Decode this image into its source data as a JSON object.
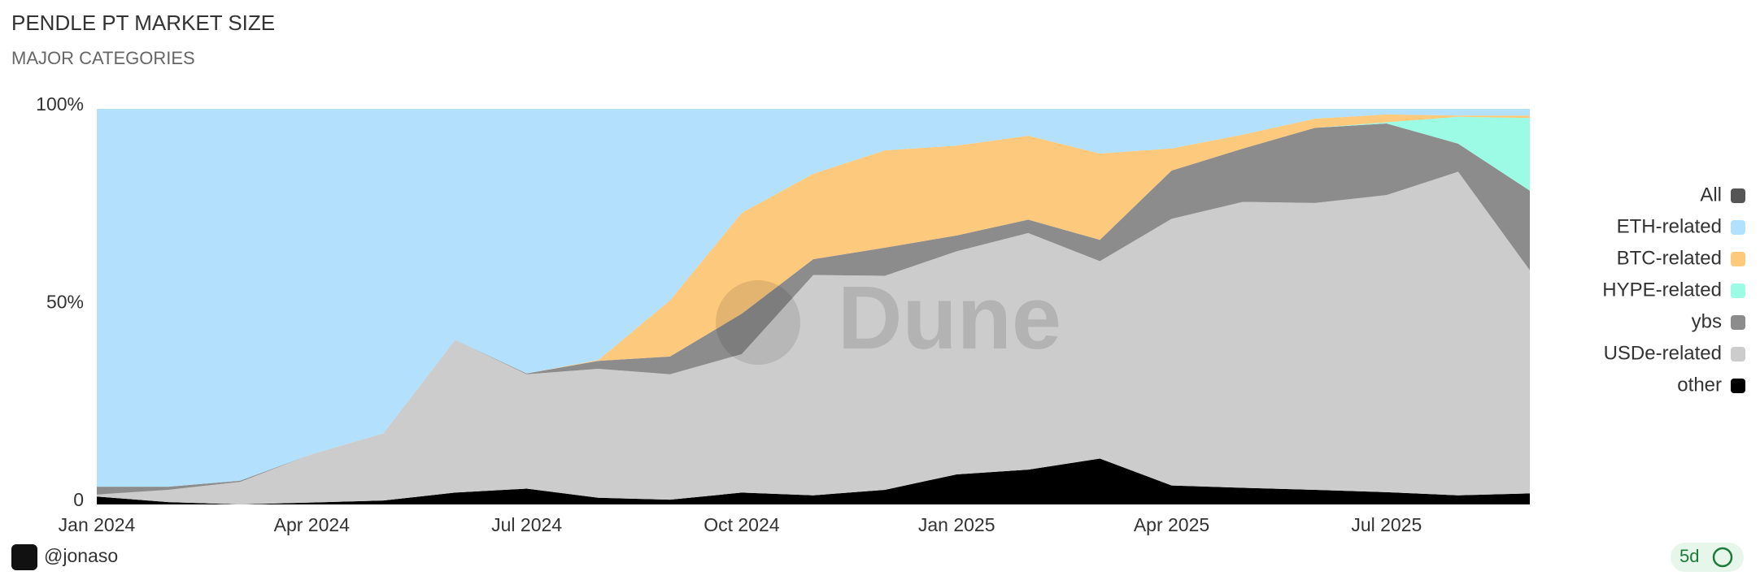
{
  "chart_data": {
    "type": "stacked_area_percent",
    "title": "PENDLE PT MARKET SIZE",
    "subtitle": "MAJOR CATEGORIES",
    "watermark": "Dune",
    "categories": [
      "Jan 2024",
      null,
      null,
      "Apr 2024",
      null,
      null,
      "Jul 2024",
      null,
      null,
      "Oct 2024",
      null,
      null,
      "Jan 2025",
      null,
      null,
      "Apr 2025",
      null,
      null,
      "Jul 2025",
      null,
      null
    ],
    "ylim": [
      0,
      100
    ],
    "yticks": [
      0,
      {
        "value": 50,
        "label": "50%"
      },
      {
        "value": 100,
        "label": "100%"
      }
    ],
    "legend": "right",
    "series": [
      {
        "name": "All",
        "color": "#555555",
        "values": [
          0,
          0,
          0,
          0,
          0,
          0,
          0,
          0,
          0,
          0,
          0,
          0,
          0,
          0,
          0,
          0,
          0,
          0,
          0,
          0,
          0
        ]
      },
      {
        "name": "ETH-related",
        "color": "#b3e0fc",
        "values": [
          95.5,
          95.5,
          94,
          87.3,
          82,
          58.4,
          66.9,
          63.5,
          48.4,
          26.3,
          16.4,
          10.5,
          9.3,
          6.8,
          11.3,
          10,
          6.5,
          2.5,
          1.4,
          1.7,
          1.7
        ]
      },
      {
        "name": "BTC-related",
        "color": "#fdc97c",
        "values": [
          0,
          0,
          0,
          0,
          0,
          0,
          0,
          0.2,
          14.2,
          25.5,
          21.6,
          24.6,
          22.7,
          21.2,
          21.8,
          5.6,
          3.5,
          2.3,
          2,
          0.3,
          0.6
        ]
      },
      {
        "name": "HYPE-related",
        "color": "#9cfbe4",
        "values": [
          0,
          0,
          0,
          0,
          0,
          0,
          0,
          0,
          0,
          0,
          0,
          0,
          0,
          0,
          0,
          0,
          0,
          0,
          0.3,
          6.8,
          18.4
        ]
      },
      {
        "name": "ybs",
        "color": "#8c8c8c",
        "values": [
          2,
          0.8,
          0.3,
          0,
          0,
          0,
          0.2,
          2,
          4.5,
          10.2,
          4,
          7.1,
          4,
          3.4,
          5.4,
          12.2,
          13.5,
          19,
          18.1,
          7.1,
          20.1
        ]
      },
      {
        "name": "USDe-related",
        "color": "#cccccc",
        "values": [
          0.5,
          3.1,
          5.7,
          12.2,
          17,
          38.6,
          28.9,
          32.6,
          31.7,
          35,
          55.7,
          54.1,
          56.4,
          59.8,
          49.9,
          67.4,
          72.3,
          72.5,
          75.1,
          81.8,
          56.4
        ]
      },
      {
        "name": "other",
        "color": "#000000",
        "values": [
          2,
          0.6,
          0,
          0.5,
          1,
          3,
          4,
          1.7,
          1.2,
          3,
          2.3,
          3.7,
          7.6,
          8.8,
          11.6,
          4.8,
          4.2,
          3.7,
          3.1,
          2.3,
          2.8
        ]
      }
    ]
  },
  "footer": {
    "author": "@jonaso",
    "refresh": "5d"
  }
}
